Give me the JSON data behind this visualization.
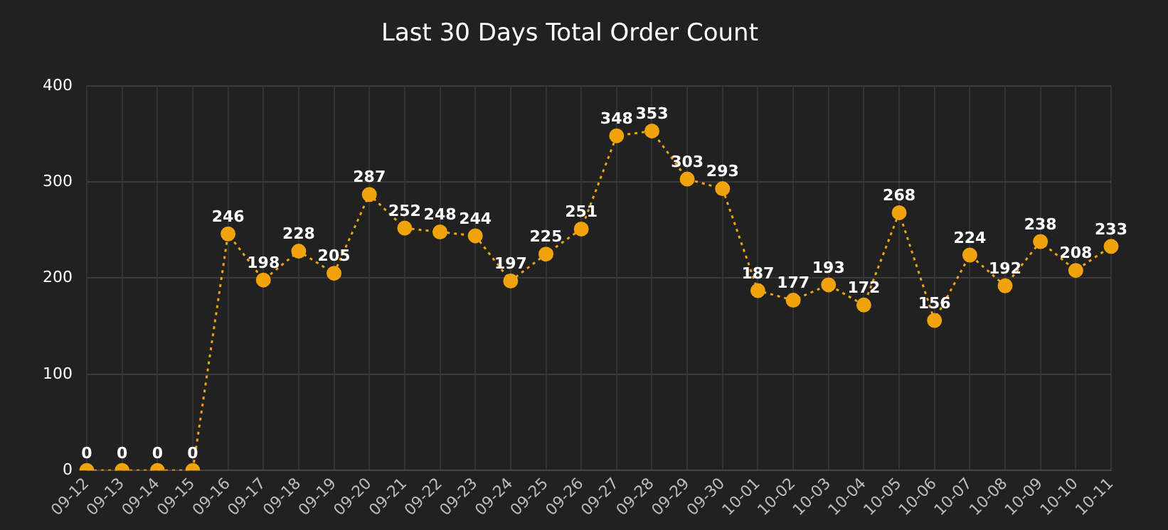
{
  "chart_data": {
    "type": "line",
    "title": "Last 30 Days Total Order Count",
    "categories": [
      "09-12",
      "09-13",
      "09-14",
      "09-15",
      "09-16",
      "09-17",
      "09-18",
      "09-19",
      "09-20",
      "09-21",
      "09-22",
      "09-23",
      "09-24",
      "09-25",
      "09-26",
      "09-27",
      "09-28",
      "09-29",
      "09-30",
      "10-01",
      "10-02",
      "10-03",
      "10-04",
      "10-05",
      "10-06",
      "10-07",
      "10-08",
      "10-09",
      "10-10",
      "10-11"
    ],
    "series": [
      {
        "color": "#f0a30a",
        "values": [
          0,
          0,
          0,
          0,
          246,
          198,
          228,
          205,
          287,
          252,
          248,
          244,
          197,
          225,
          251,
          348,
          353,
          303,
          293,
          187,
          177,
          193,
          172,
          268,
          156,
          224,
          192,
          238,
          208,
          233
        ]
      }
    ],
    "ylim": [
      0,
      400
    ],
    "yticks": [
      0,
      100,
      200,
      300,
      400
    ],
    "grid": true,
    "legend": false,
    "marker": "circle",
    "line_style": "dotted",
    "data_labels": true
  }
}
